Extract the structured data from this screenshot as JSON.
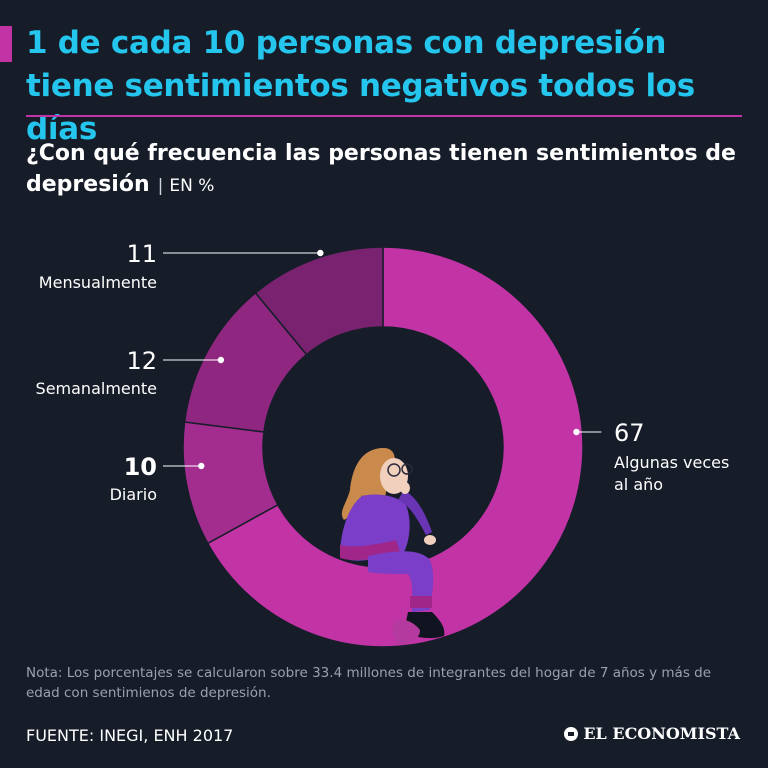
{
  "header": {
    "title_line1": "1 de cada 10 personas con depresión",
    "title_line2": "tiene sentimientos negativos todos los días",
    "subtitle": "¿Con qué frecuencia las personas tienen sentimientos de depresión",
    "unit": "EN %"
  },
  "chart_data": {
    "type": "pie",
    "variant": "donut",
    "title": "¿Con qué frecuencia las personas tienen sentimientos de depresión",
    "unit": "%",
    "series": [
      {
        "name": "Algunas veces al año",
        "label_lines": [
          "Algunas veces",
          "al año"
        ],
        "value": 67,
        "value_label": "67",
        "color": "#c233a5",
        "bold": false,
        "side": "right"
      },
      {
        "name": "Diario",
        "label_lines": [
          "Diario"
        ],
        "value": 10,
        "value_label": "10",
        "color": "#a32c8f",
        "bold": true,
        "side": "left"
      },
      {
        "name": "Semanalmente",
        "label_lines": [
          "Semanalmente"
        ],
        "value": 12,
        "value_label": "12",
        "color": "#8f2680",
        "bold": false,
        "side": "left"
      },
      {
        "name": "Mensualmente",
        "label_lines": [
          "Mensualmente"
        ],
        "value": 11,
        "value_label": "11",
        "color": "#782270",
        "bold": false,
        "side": "left"
      }
    ]
  },
  "footer": {
    "note": "Nota: Los porcentajes se calcularon sobre 33.4 millones de integrantes del hogar de 7 años y más de edad con sentimienos de depresión.",
    "source": "FUENTE: INEGI, ENH 2017",
    "brand": "EL ECONOMISTA"
  },
  "illustration": {
    "icon": "sitting-person-illustration"
  },
  "colors": {
    "accent": "#c233a5",
    "title": "#25c6ee",
    "background": "#161d29"
  }
}
